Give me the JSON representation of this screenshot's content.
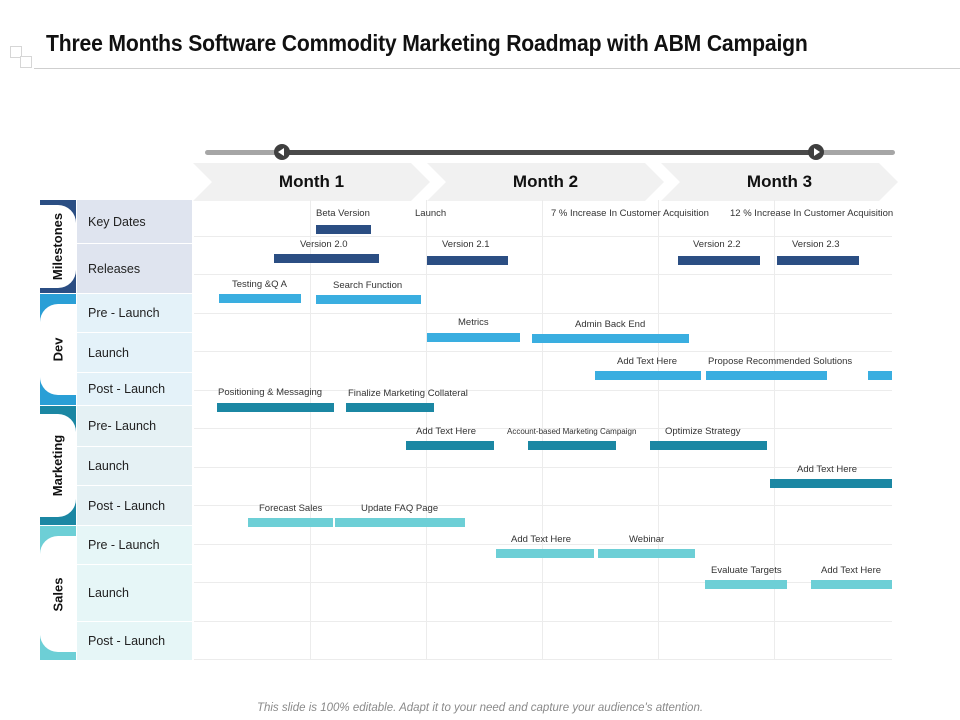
{
  "title": "Three Months Software Commodity Marketing Roadmap with ABM Campaign",
  "footer": "This slide is 100% editable. Adapt it to your need and capture your audience's attention.",
  "months": [
    "Month 1",
    "Month 2",
    "Month 3"
  ],
  "colors": {
    "milestones_strip": "#2b4e83",
    "milestones_cell": "#dfe4ef",
    "dev_strip": "#2a9fd6",
    "dev_cell": "#e4f2f9",
    "marketing_strip": "#1b87a3",
    "marketing_cell": "#e5f1f4",
    "sales_strip": "#6dcfd6",
    "sales_cell": "#e6f6f7"
  },
  "categories": [
    {
      "key": "milestones",
      "name": "Milestones",
      "rows": [
        "Key Dates",
        "Releases"
      ]
    },
    {
      "key": "dev",
      "name": "Dev",
      "rows": [
        "Pre - Launch",
        "Launch",
        "Post - Launch"
      ]
    },
    {
      "key": "marketing",
      "name": "Marketing",
      "rows": [
        "Pre- Launch",
        "Launch",
        "Post - Launch"
      ]
    },
    {
      "key": "sales",
      "name": "Sales",
      "rows": [
        "Pre - Launch",
        "Launch",
        "Post - Launch"
      ]
    }
  ],
  "tasks": [
    {
      "row": "milestones.key_dates",
      "label": "Beta Version",
      "color": "#2b4e83"
    },
    {
      "row": "milestones.key_dates",
      "label": "Launch",
      "color": null
    },
    {
      "row": "milestones.key_dates",
      "label": "7 % Increase In Customer Acquisition",
      "color": null
    },
    {
      "row": "milestones.key_dates",
      "label": "12 % Increase In Customer Acquisition",
      "color": null
    },
    {
      "row": "milestones.releases",
      "label": "Version 2.0",
      "color": "#2b4e83"
    },
    {
      "row": "milestones.releases",
      "label": "Version 2.1",
      "color": "#2b4e83"
    },
    {
      "row": "milestones.releases",
      "label": "Version 2.2",
      "color": "#2b4e83"
    },
    {
      "row": "milestones.releases",
      "label": "Version 2.3",
      "color": "#2b4e83"
    },
    {
      "row": "dev.pre_launch",
      "label": "Testing &Q A",
      "color": "#3aaee0"
    },
    {
      "row": "dev.pre_launch",
      "label": "Search Function",
      "color": "#3aaee0"
    },
    {
      "row": "dev.launch",
      "label": "Metrics",
      "color": "#3aaee0"
    },
    {
      "row": "dev.launch",
      "label": "Admin Back End",
      "color": "#3aaee0"
    },
    {
      "row": "dev.post_launch",
      "label": "Add Text Here",
      "color": "#3aaee0"
    },
    {
      "row": "dev.post_launch",
      "label": "Propose Recommended Solutions",
      "color": "#3aaee0"
    },
    {
      "row": "dev.post_launch",
      "label": "",
      "color": "#3aaee0"
    },
    {
      "row": "marketing.pre_launch",
      "label": "Positioning & Messaging",
      "color": "#1b87a3"
    },
    {
      "row": "marketing.pre_launch",
      "label": "Finalize Marketing Collateral",
      "color": "#1b87a3"
    },
    {
      "row": "marketing.launch",
      "label": "Add Text Here",
      "color": "#1b87a3"
    },
    {
      "row": "marketing.launch",
      "label": "Account-based  Marketing  Campaign",
      "color": "#1b87a3"
    },
    {
      "row": "marketing.launch",
      "label": "Optimize Strategy",
      "color": "#1b87a3"
    },
    {
      "row": "marketing.post_launch",
      "label": "Add Text Here",
      "color": "#1b87a3"
    },
    {
      "row": "sales.pre_launch",
      "label": "Forecast Sales",
      "color": "#6dcfd6"
    },
    {
      "row": "sales.pre_launch",
      "label": "Update FAQ Page",
      "color": "#6dcfd6"
    },
    {
      "row": "sales.launch",
      "label": "Add Text Here",
      "color": "#6dcfd6"
    },
    {
      "row": "sales.launch",
      "label": "Webinar",
      "color": "#6dcfd6"
    },
    {
      "row": "sales.post_launch",
      "label": "Evaluate Targets",
      "color": "#6dcfd6"
    },
    {
      "row": "sales.post_launch",
      "label": "Add Text Here",
      "color": "#6dcfd6"
    }
  ]
}
